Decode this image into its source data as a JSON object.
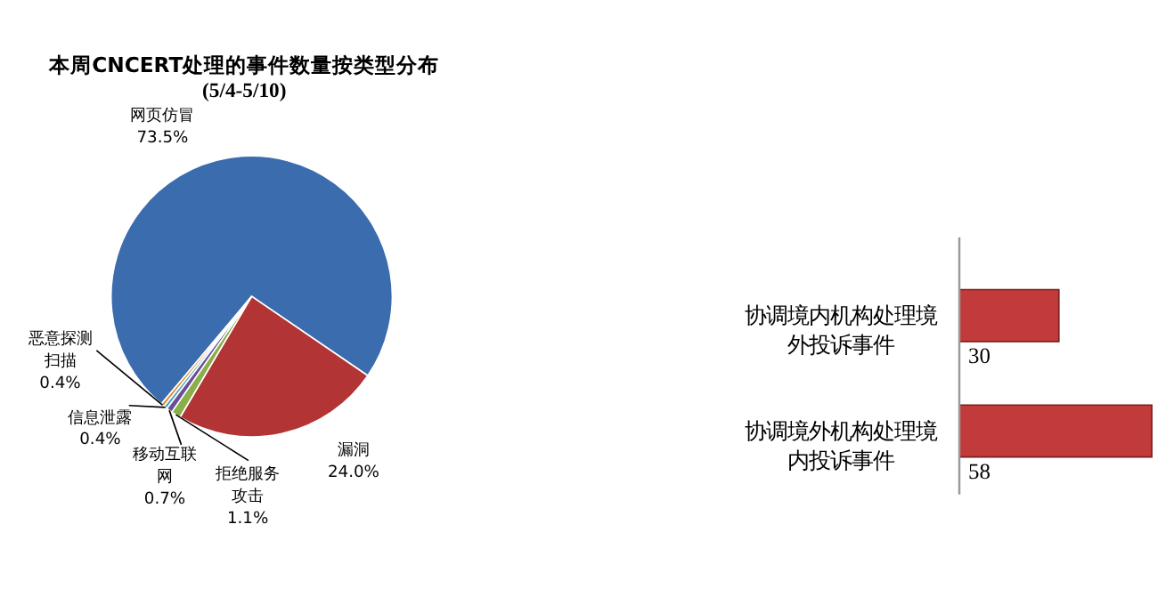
{
  "chart_data": [
    {
      "type": "pie",
      "title": "本周CNCERT处理的事件数量按类型分布",
      "subtitle": "(5/4-5/10)",
      "categories": [
        "网页仿冒",
        "漏洞",
        "拒绝服务攻击",
        "移动互联网",
        "信息泄露",
        "恶意探测扫描"
      ],
      "values": [
        73.5,
        24.0,
        1.1,
        0.7,
        0.4,
        0.4
      ],
      "colors": [
        "#3a6cae",
        "#b23434",
        "#8aae48",
        "#6a4f98",
        "#3b9fbf",
        "#e0892c"
      ],
      "value_labels": [
        "73.5%",
        "24.0%",
        "1.1%",
        "0.7%",
        "0.4%",
        "0.4%"
      ]
    },
    {
      "type": "bar",
      "orientation": "horizontal",
      "categories": [
        "协调境内机构处理境外投诉事件",
        "协调境外机构处理境内投诉事件"
      ],
      "values": [
        30,
        58
      ],
      "color": "#c23b3b",
      "data_labels": true
    }
  ]
}
